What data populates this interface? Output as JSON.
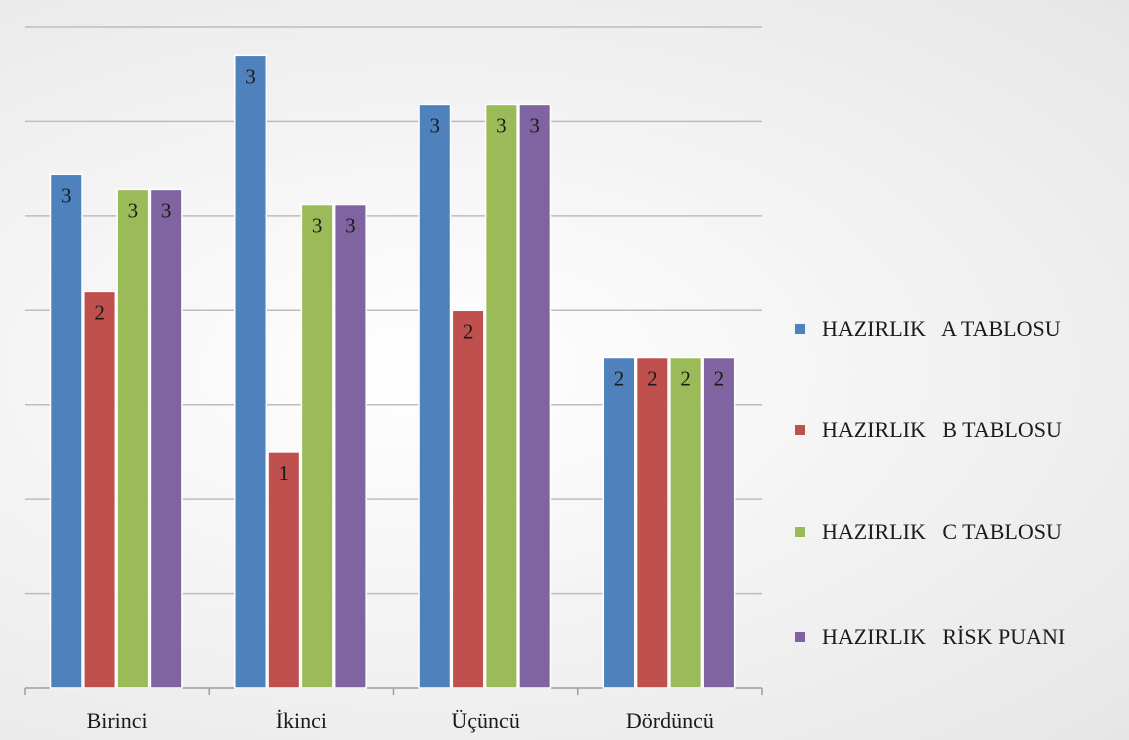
{
  "chart_data": {
    "type": "bar",
    "categories": [
      "Birinci",
      "İkinci",
      "Üçüncü",
      "Dördüncü"
    ],
    "series": [
      {
        "name": "HAZIRLIK   A TABLOSU",
        "color": "#4F81BD",
        "values": [
          2.72,
          3.35,
          3.09,
          1.75
        ],
        "labels": [
          "3",
          "3",
          "3",
          "2"
        ]
      },
      {
        "name": "HAZIRLIK   B TABLOSU",
        "color": "#C0504D",
        "values": [
          2.1,
          1.25,
          2.0,
          1.75
        ],
        "labels": [
          "2",
          "1",
          "2",
          "2"
        ]
      },
      {
        "name": "HAZIRLIK   C TABLOSU",
        "color": "#9BBB59",
        "values": [
          2.64,
          2.56,
          3.09,
          1.75
        ],
        "labels": [
          "3",
          "3",
          "3",
          "2"
        ]
      },
      {
        "name": "HAZIRLIK   RİSK PUANI",
        "color": "#8064A2",
        "values": [
          2.64,
          2.56,
          3.09,
          1.75
        ],
        "labels": [
          "3",
          "3",
          "3",
          "2"
        ]
      }
    ],
    "ylim": [
      0,
      3.5
    ],
    "grid": true,
    "legend": "right"
  }
}
